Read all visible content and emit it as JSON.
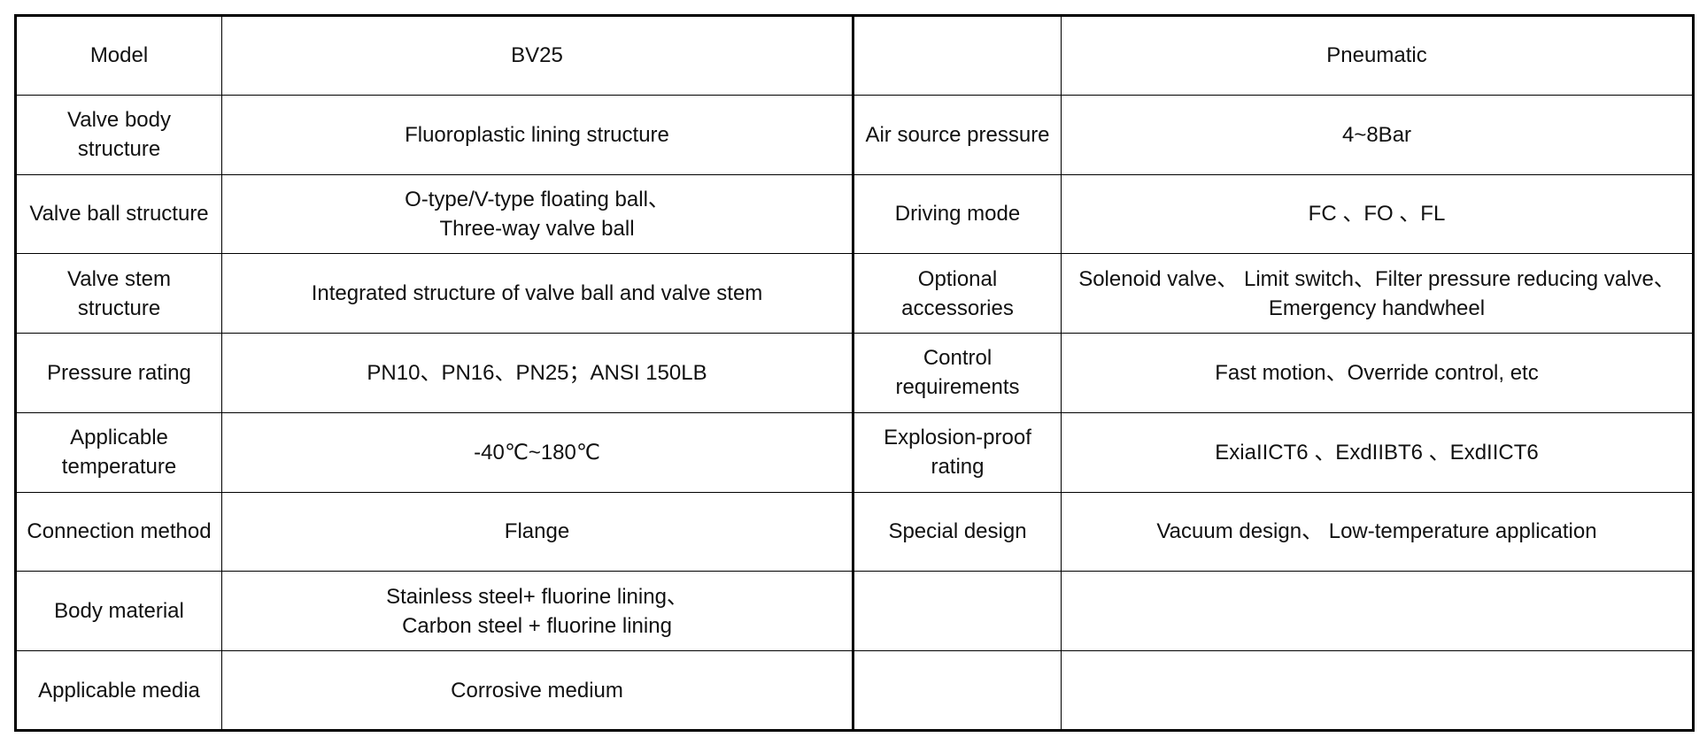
{
  "table": {
    "rows": [
      {
        "left_label": "Model",
        "left_value": "BV25",
        "right_label": "",
        "right_value": "Pneumatic"
      },
      {
        "left_label": "Valve body\nstructure",
        "left_value": "Fluoroplastic lining structure",
        "right_label": "Air source pressure",
        "right_value": "4~8Bar"
      },
      {
        "left_label": "Valve ball structure",
        "left_value": "O-type/V-type floating ball、\nThree-way valve ball",
        "right_label": "Driving mode",
        "right_value": "FC 、FO 、FL"
      },
      {
        "left_label": "Valve stem\nstructure",
        "left_value": "Integrated structure of valve ball and valve stem",
        "right_label": "Optional\naccessories",
        "right_value": "Solenoid valve、 Limit switch、Filter pressure reducing valve、\nEmergency handwheel"
      },
      {
        "left_label": "Pressure rating",
        "left_value": "PN10、PN16、PN25；ANSI 150LB",
        "right_label": "Control\nrequirements",
        "right_value": "Fast motion、Override control, etc"
      },
      {
        "left_label": "Applicable\ntemperature",
        "left_value": "-40℃~180℃",
        "right_label": "Explosion-proof\nrating",
        "right_value": "ExiaIICT6 、ExdIIBT6 、ExdIICT6"
      },
      {
        "left_label": "Connection method",
        "left_value": "Flange",
        "right_label": "Special design",
        "right_value": "Vacuum design、 Low-temperature application"
      },
      {
        "left_label": "Body material",
        "left_value": "Stainless steel+ fluorine lining、\nCarbon steel + fluorine lining",
        "right_label": "",
        "right_value": ""
      },
      {
        "left_label": "Applicable media",
        "left_value": "Corrosive medium",
        "right_label": "",
        "right_value": ""
      }
    ]
  }
}
